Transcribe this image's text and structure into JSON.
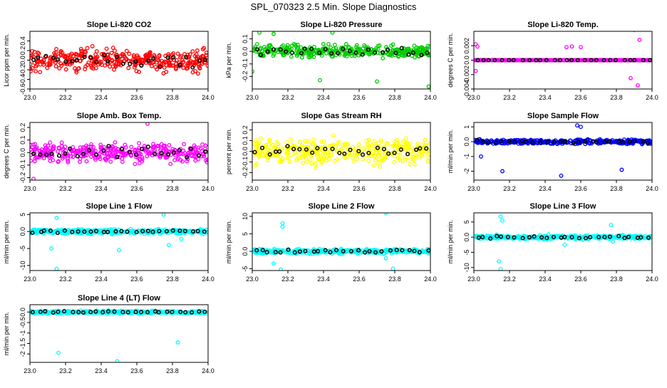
{
  "page_title": "SPL_070323  2.5 Min. Slope Diagnostics",
  "chart_data": [
    {
      "type": "scatter",
      "title": "Slope Li-820 CO2",
      "ylabel": "Licor ppm per min.",
      "xlim": [
        23.0,
        24.0
      ],
      "ylim": [
        -0.6,
        0.6
      ],
      "yticks": [
        -0.6,
        -0.4,
        -0.2,
        0.0,
        0.2,
        0.4
      ],
      "xticks": [
        23.0,
        23.2,
        23.4,
        23.6,
        23.8,
        24.0
      ],
      "spread": 0.28,
      "color": "#ff0000",
      "highlight_color": "#000000",
      "outliers": []
    },
    {
      "type": "scatter",
      "title": "Slope Li-820 Pressure",
      "ylabel": "kPa per min.",
      "xlim": [
        23.0,
        24.0
      ],
      "ylim": [
        -0.3,
        0.16
      ],
      "yticks": [
        -0.2,
        -0.1,
        0.0,
        0.1
      ],
      "xticks": [
        23.0,
        23.2,
        23.4,
        23.6,
        23.8,
        24.0
      ],
      "spread": 0.06,
      "color": "#00cc00",
      "highlight_color": "#000000",
      "outliers": [
        [
          23.04,
          0.15
        ],
        [
          23.12,
          0.14
        ],
        [
          23.45,
          0.15
        ],
        [
          23.99,
          -0.28
        ],
        [
          23.38,
          -0.23
        ],
        [
          23.7,
          -0.24
        ],
        [
          23.0,
          -0.16
        ]
      ]
    },
    {
      "type": "scatter",
      "title": "Slope Li-820 Temp.",
      "ylabel": "degrees C per min.",
      "xlim": [
        23.0,
        24.0
      ],
      "ylim": [
        -0.004,
        0.004
      ],
      "yticks": [
        -0.004,
        -0.002,
        0.0,
        0.002
      ],
      "xticks": [
        23.0,
        23.2,
        23.4,
        23.6,
        23.8,
        24.0
      ],
      "spread": 0.0,
      "color": "#ff00ff",
      "highlight_color": "#000000",
      "outliers": [
        [
          23.01,
          0.0022
        ],
        [
          23.02,
          0.0019
        ],
        [
          23.01,
          -0.0015
        ],
        [
          23.52,
          0.0018
        ],
        [
          23.55,
          0.0019
        ],
        [
          23.6,
          0.0018
        ],
        [
          23.9,
          0.0042
        ],
        [
          23.92,
          -0.0035
        ],
        [
          23.88,
          -0.0025
        ],
        [
          23.93,
          0.0028
        ]
      ]
    },
    {
      "type": "scatter",
      "title": "Slope Amb. Box Temp.",
      "ylabel": "degrees C per min.",
      "xlim": [
        23.0,
        24.0
      ],
      "ylim": [
        -0.22,
        0.24
      ],
      "yticks": [
        -0.2,
        -0.1,
        0.0,
        0.1,
        0.2
      ],
      "xticks": [
        23.0,
        23.2,
        23.4,
        23.6,
        23.8,
        24.0
      ],
      "spread": 0.09,
      "color": "#ff00ff",
      "highlight_color": "#000000",
      "outliers": [
        [
          23.66,
          0.23
        ],
        [
          23.02,
          -0.21
        ]
      ]
    },
    {
      "type": "scatter",
      "title": "Slope Gas Stream RH",
      "ylabel": "percent per min.",
      "xlim": [
        23.0,
        24.0
      ],
      "ylim": [
        -0.27,
        0.27
      ],
      "yticks": [
        -0.2,
        -0.1,
        0.0,
        0.1,
        0.2
      ],
      "xticks": [
        23.0,
        23.2,
        23.4,
        23.6,
        23.8,
        24.0
      ],
      "spread": 0.14,
      "color": "#ffff00",
      "highlight_color": "#000000",
      "outliers": []
    },
    {
      "type": "scatter",
      "title": "Slope Sample Flow",
      "ylabel": "ml/min per min.",
      "xlim": [
        23.0,
        24.0
      ],
      "ylim": [
        -2.6,
        1.3
      ],
      "yticks": [
        -2,
        -1,
        0,
        1
      ],
      "xticks": [
        23.0,
        23.2,
        23.4,
        23.6,
        23.8,
        24.0
      ],
      "spread": 0.2,
      "color": "#0000ff",
      "highlight_color": "#000000",
      "outliers": [
        [
          23.16,
          -2.0
        ],
        [
          23.58,
          1.1
        ],
        [
          23.6,
          1.0
        ],
        [
          23.83,
          -1.9
        ],
        [
          23.49,
          -2.3
        ],
        [
          23.04,
          -1.0
        ]
      ]
    },
    {
      "type": "scatter",
      "title": "Slope Line 1 Flow",
      "ylabel": "ml/min per min.",
      "xlim": [
        23.0,
        24.0
      ],
      "ylim": [
        -11.5,
        5.5
      ],
      "yticks": [
        -10,
        -5,
        0,
        5
      ],
      "xticks": [
        23.0,
        23.2,
        23.4,
        23.6,
        23.8,
        24.0
      ],
      "spread": 0.8,
      "color": "#00ffff",
      "highlight_color": "#000000",
      "outliers": [
        [
          23.15,
          -11.0
        ],
        [
          23.12,
          -5.0
        ],
        [
          23.15,
          4.0
        ],
        [
          23.5,
          -5.5
        ],
        [
          23.75,
          5.0
        ],
        [
          23.78,
          -4.0
        ],
        [
          23.85,
          -2.2
        ]
      ]
    },
    {
      "type": "scatter",
      "title": "Slope Line 2 Flow",
      "ylabel": "ml/min per min.",
      "xlim": [
        23.0,
        24.0
      ],
      "ylim": [
        -5.5,
        11.0
      ],
      "yticks": [
        -5,
        0,
        5,
        10
      ],
      "xticks": [
        23.0,
        23.2,
        23.4,
        23.6,
        23.8,
        24.0
      ],
      "spread": 0.8,
      "color": "#00ffff",
      "highlight_color": "#000000",
      "outliers": [
        [
          23.17,
          8.0
        ],
        [
          23.17,
          7.0
        ],
        [
          23.75,
          11.0
        ],
        [
          23.75,
          -2.0
        ],
        [
          23.79,
          -5.0
        ],
        [
          23.12,
          -3.5
        ],
        [
          23.16,
          -5.2
        ]
      ]
    },
    {
      "type": "scatter",
      "title": "Slope Line 3 Flow",
      "ylabel": "ml/min per min.",
      "xlim": [
        23.0,
        24.0
      ],
      "ylim": [
        -11.0,
        8.0
      ],
      "yticks": [
        -10,
        -5,
        0,
        5
      ],
      "xticks": [
        23.0,
        23.2,
        23.4,
        23.6,
        23.8,
        24.0
      ],
      "spread": 0.8,
      "color": "#00ffff",
      "highlight_color": "#000000",
      "outliers": [
        [
          23.15,
          6.8
        ],
        [
          23.16,
          5.5
        ],
        [
          23.15,
          -10.5
        ],
        [
          23.14,
          -8.0
        ],
        [
          23.77,
          4.0
        ],
        [
          23.78,
          -1.5
        ],
        [
          23.51,
          -2.5
        ]
      ]
    },
    {
      "type": "scatter",
      "title": "Slope Line 4 (LT) Flow",
      "ylabel": "ml/min per min.",
      "xlim": [
        23.0,
        24.0
      ],
      "ylim": [
        -2.4,
        0.35
      ],
      "yticks": [
        -2.0,
        -1.5,
        -1.0,
        -0.5,
        0.0
      ],
      "xticks": [
        23.0,
        23.2,
        23.4,
        23.6,
        23.8,
        24.0
      ],
      "spread": 0.08,
      "color": "#00ffff",
      "highlight_color": "#000000",
      "outliers": [
        [
          23.16,
          -1.95
        ],
        [
          23.49,
          -2.35
        ],
        [
          23.83,
          -1.45
        ]
      ]
    }
  ]
}
